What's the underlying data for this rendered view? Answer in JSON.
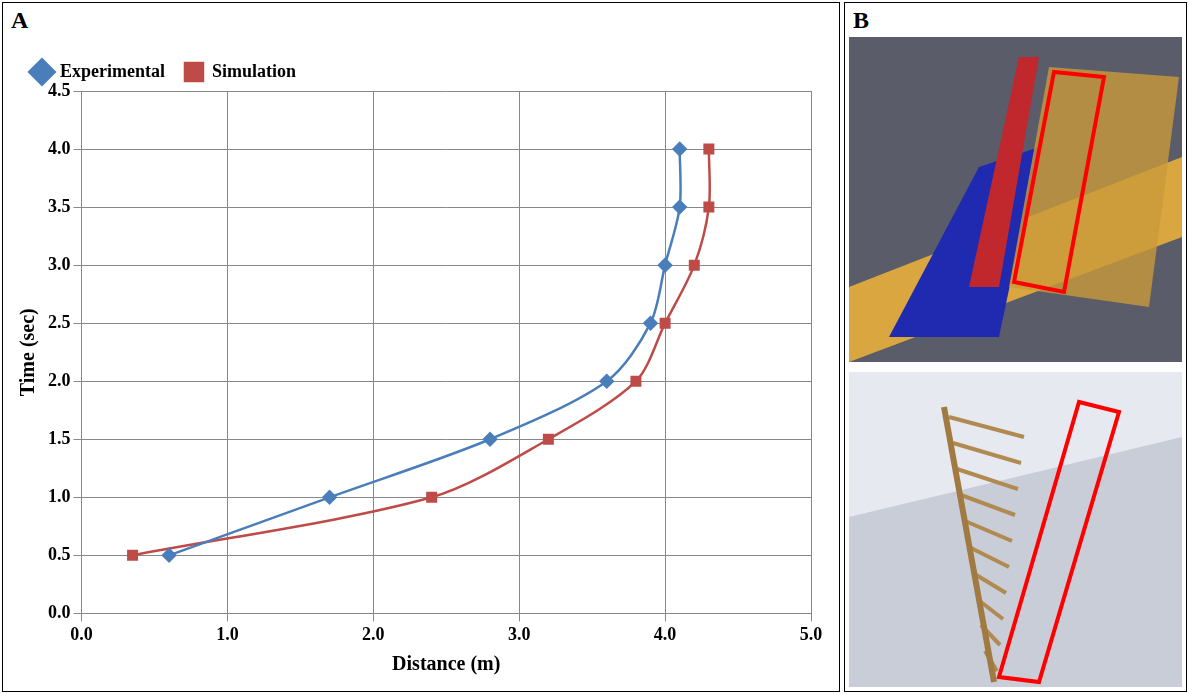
{
  "chart_data": {
    "type": "line",
    "x_label": "Distance (m)",
    "y_label": "Time (sec)",
    "series": [
      {
        "name": "Experimental",
        "color": "#4a7ebb",
        "marker": "diamond",
        "x": [
          0.6,
          1.7,
          2.8,
          3.6,
          3.9,
          4.0,
          4.1,
          4.1
        ],
        "values": [
          0.5,
          1.0,
          1.5,
          2.0,
          2.5,
          3.0,
          3.5,
          4.0
        ]
      },
      {
        "name": "Simulation",
        "color": "#be4b48",
        "marker": "square",
        "x": [
          0.35,
          2.4,
          3.2,
          3.8,
          4.0,
          4.2,
          4.3,
          4.3
        ],
        "values": [
          0.5,
          1.0,
          1.5,
          2.0,
          2.5,
          3.0,
          3.5,
          4.0
        ]
      }
    ],
    "xlim": [
      0,
      5
    ],
    "xticks": [
      {
        "value": 0,
        "label": "0.0"
      },
      {
        "value": 1,
        "label": "1.0"
      },
      {
        "value": 2,
        "label": "2.0"
      },
      {
        "value": 3,
        "label": "3.0"
      },
      {
        "value": 4,
        "label": "4.0"
      },
      {
        "value": 5,
        "label": "5.0"
      }
    ],
    "ylim": [
      0,
      4.5
    ],
    "yticks": [
      {
        "value": 0,
        "label": "0.0"
      },
      0.5,
      {
        "value": 1,
        "label": "1.0"
      },
      1.5,
      {
        "value": 2,
        "label": "2.0"
      },
      2.5,
      {
        "value": 3,
        "label": "3.0"
      },
      3.5,
      {
        "value": 4,
        "label": "4.0"
      },
      4.5
    ],
    "grid": true,
    "legend": "top"
  },
  "panel_labels": [
    "A",
    "B"
  ]
}
